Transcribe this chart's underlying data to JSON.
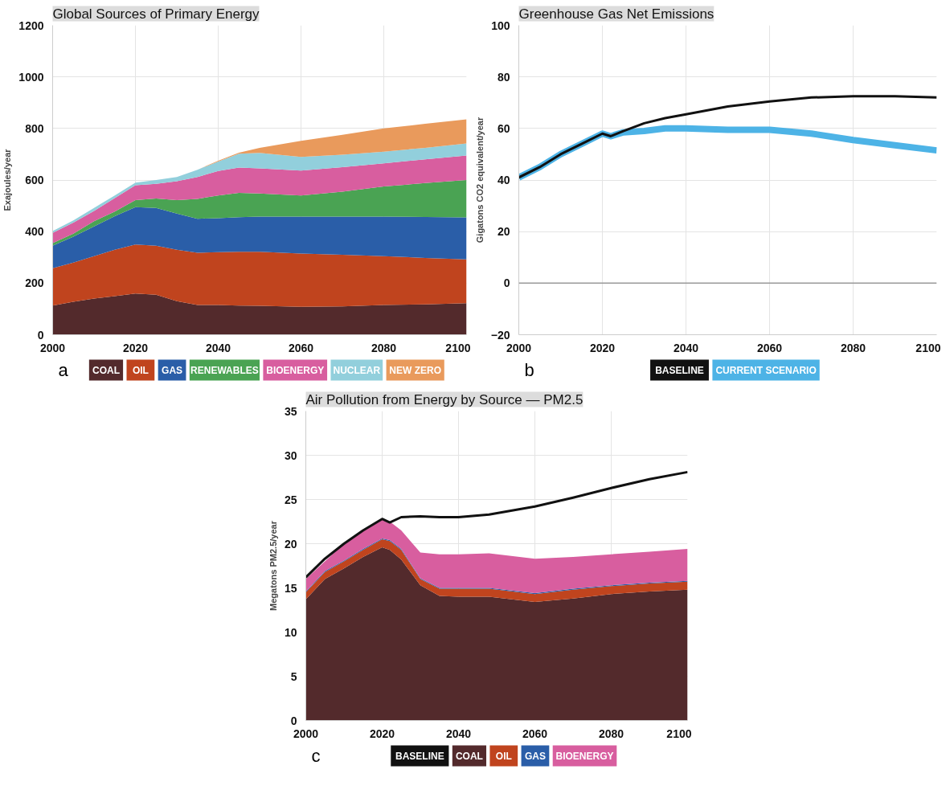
{
  "chart_data": [
    {
      "type": "area",
      "stacked": true,
      "title": "Global Sources of Primary Energy",
      "ylabel": "Exajoules/year",
      "annotations": [
        "a"
      ],
      "grid": true,
      "legend": "bottom",
      "xlim": [
        2000,
        2100
      ],
      "xticks": [
        2000,
        2020,
        2040,
        2060,
        2080,
        2100
      ],
      "ylim": [
        0,
        1200
      ],
      "yticks": [
        0,
        200,
        400,
        600,
        800,
        1000,
        1200
      ],
      "x": [
        2000,
        2005,
        2010,
        2015,
        2020,
        2025,
        2030,
        2035,
        2040,
        2045,
        2050,
        2060,
        2070,
        2080,
        2090,
        2100
      ],
      "series": [
        {
          "name": "COAL",
          "color": "#532a2c",
          "values": [
            113,
            128,
            140,
            150,
            160,
            155,
            130,
            115,
            115,
            113,
            112,
            108,
            110,
            115,
            118,
            122
          ]
        },
        {
          "name": "OIL",
          "color": "#c0441e",
          "values": [
            145,
            152,
            165,
            180,
            190,
            190,
            200,
            203,
            205,
            209,
            210,
            207,
            200,
            190,
            180,
            170
          ]
        },
        {
          "name": "GAS",
          "color": "#2a5ea8",
          "values": [
            87,
            100,
            115,
            130,
            145,
            147,
            140,
            132,
            132,
            134,
            136,
            143,
            148,
            153,
            159,
            163
          ]
        },
        {
          "name": "RENEWABLES",
          "color": "#4aa353",
          "values": [
            10,
            12,
            20,
            18,
            27,
            36,
            52,
            77,
            88,
            94,
            90,
            82,
            97,
            117,
            131,
            145
          ]
        },
        {
          "name": "BIOENERGY",
          "color": "#d85e9f",
          "values": [
            40,
            43,
            40,
            52,
            58,
            57,
            73,
            85,
            95,
            98,
            97,
            97,
            95,
            90,
            92,
            95
          ]
        },
        {
          "name": "NUCLEAR",
          "color": "#92cfdc",
          "values": [
            7,
            8,
            12,
            10,
            10,
            15,
            17,
            28,
            37,
            54,
            60,
            53,
            48,
            45,
            45,
            47
          ]
        },
        {
          "name": "NEW ZERO",
          "color": "#e99a5c",
          "values": [
            0,
            0,
            0,
            0,
            0,
            0,
            0,
            0,
            3,
            4,
            20,
            62,
            77,
            90,
            93,
            93
          ]
        }
      ]
    },
    {
      "type": "line",
      "title": "Greenhouse Gas Net Emissions",
      "ylabel": "Gigatons CO2 equivalent/year",
      "annotations": [
        "b"
      ],
      "grid": true,
      "legend": "bottom",
      "xlim": [
        2000,
        2100
      ],
      "xticks": [
        2000,
        2020,
        2040,
        2060,
        2080,
        2100
      ],
      "ylim": [
        -20,
        100
      ],
      "yticks": [
        -20,
        0,
        20,
        40,
        60,
        80,
        100
      ],
      "ref_lines": [
        {
          "axis": "y",
          "value": 0,
          "color": "#999999"
        }
      ],
      "x": [
        2000,
        2005,
        2010,
        2015,
        2020,
        2022,
        2025,
        2030,
        2035,
        2040,
        2050,
        2060,
        2070,
        2080,
        2090,
        2100
      ],
      "series": [
        {
          "name": "BASELINE",
          "color": "#111111",
          "values": [
            41,
            45,
            50,
            54,
            58,
            57,
            59,
            62,
            64,
            65.5,
            68.5,
            70.5,
            72,
            72.5,
            72.5,
            72
          ]
        },
        {
          "name": "CURRENT SCENARIO",
          "color": "#4db3e6",
          "values": [
            41,
            45,
            50,
            54,
            58,
            57,
            58.5,
            59,
            60,
            60,
            59.5,
            59.5,
            58,
            55.5,
            53.5,
            51.5
          ]
        }
      ]
    },
    {
      "type": "area",
      "stacked": true,
      "title": "Air Pollution from Energy by Source — PM2.5",
      "ylabel": "Megatons PM2.5/year",
      "annotations": [
        "c"
      ],
      "grid": true,
      "legend": "bottom",
      "xlim": [
        2000,
        2100
      ],
      "xticks": [
        2000,
        2020,
        2040,
        2060,
        2080,
        2100
      ],
      "ylim": [
        0,
        35
      ],
      "yticks": [
        0,
        5,
        10,
        15,
        20,
        25,
        30,
        35
      ],
      "x": [
        2000,
        2005,
        2010,
        2015,
        2020,
        2022,
        2025,
        2030,
        2035,
        2040,
        2048,
        2060,
        2070,
        2080,
        2090,
        2100
      ],
      "series": [
        {
          "name": "BASELINE",
          "type": "line",
          "color": "#111111",
          "values": [
            16.2,
            18.3,
            20,
            21.5,
            22.8,
            22.4,
            23,
            23.1,
            23,
            23,
            23.3,
            24.2,
            25.2,
            26.3,
            27.3,
            28.1
          ]
        },
        {
          "name": "COAL",
          "color": "#532a2c",
          "values": [
            13.7,
            16,
            17.2,
            18.5,
            19.6,
            19.3,
            18.2,
            15.3,
            14.1,
            14,
            14,
            13.4,
            13.8,
            14.3,
            14.6,
            14.8
          ]
        },
        {
          "name": "OIL",
          "color": "#c0441e",
          "values": [
            0.8,
            0.8,
            0.8,
            0.8,
            0.9,
            1.0,
            1.1,
            0.7,
            0.8,
            0.9,
            0.9,
            0.9,
            1.0,
            0.9,
            0.9,
            0.9
          ]
        },
        {
          "name": "GAS",
          "color": "#2a5ea8",
          "values": [
            0.1,
            0.1,
            0.1,
            0.1,
            0.1,
            0.1,
            0.1,
            0.1,
            0.1,
            0.1,
            0.1,
            0.1,
            0.1,
            0.1,
            0.1,
            0.1
          ]
        },
        {
          "name": "BIOENERGY",
          "color": "#d85e9f",
          "values": [
            1.4,
            1.1,
            1.9,
            2.1,
            2.1,
            2.1,
            2.1,
            2.9,
            3.8,
            3.8,
            3.9,
            3.9,
            3.6,
            3.5,
            3.5,
            3.6
          ]
        }
      ]
    }
  ]
}
